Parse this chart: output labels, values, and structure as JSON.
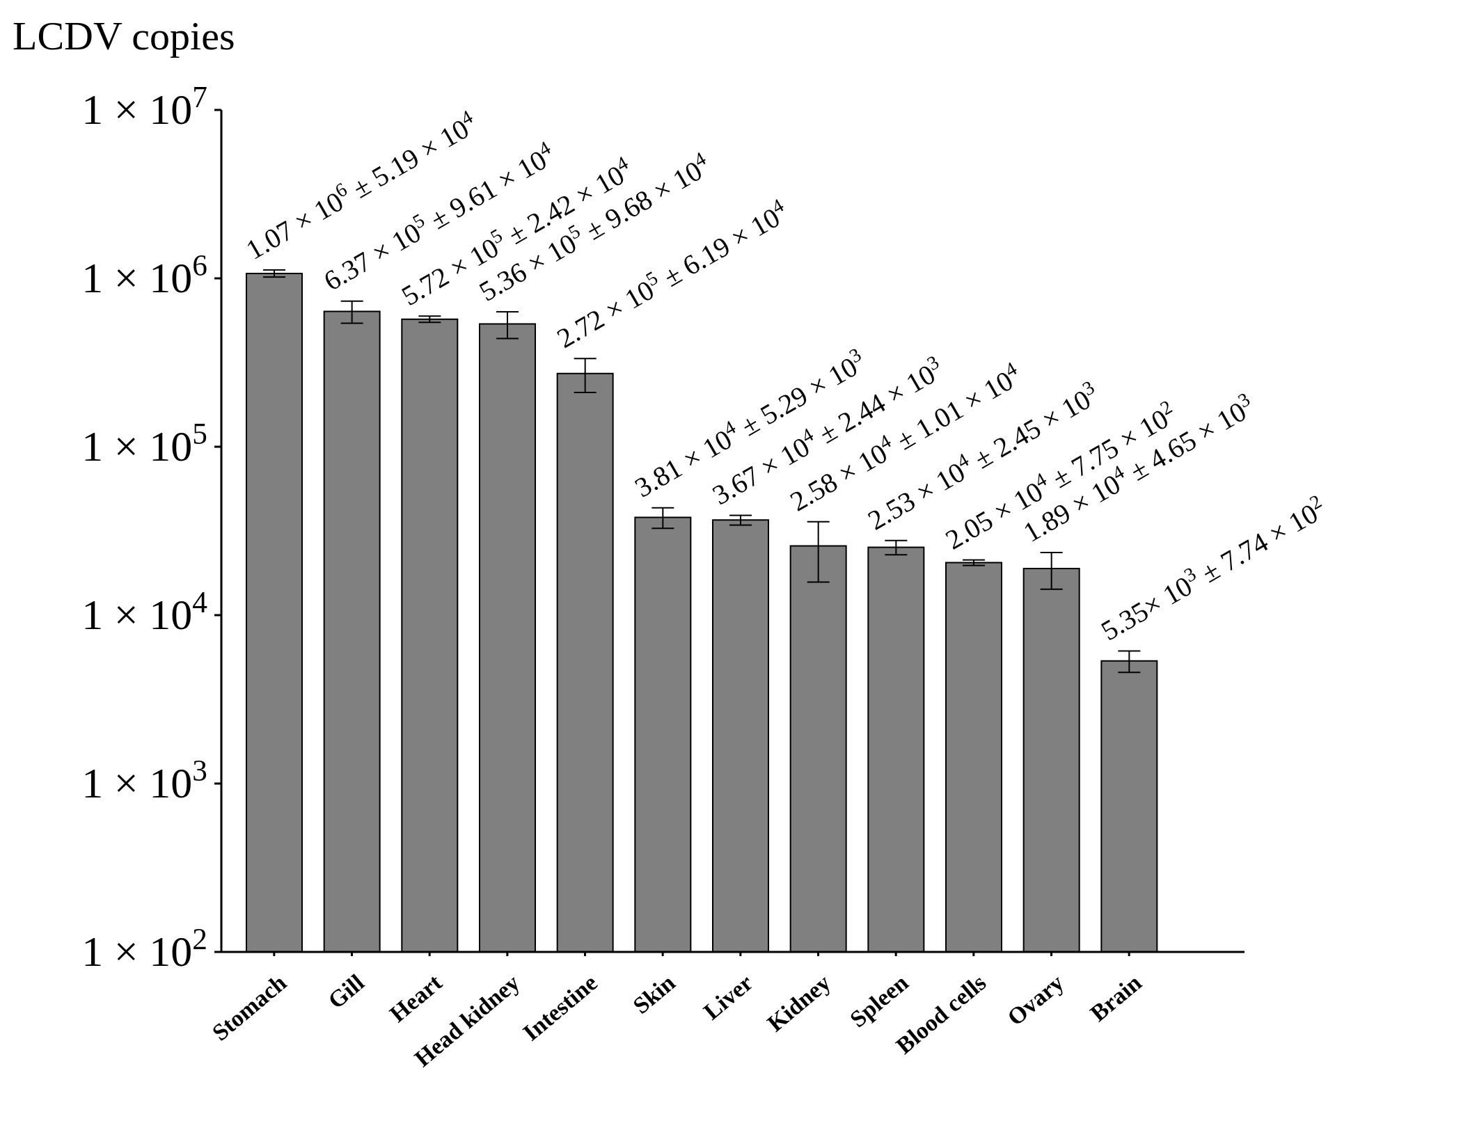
{
  "chart_data": {
    "type": "bar",
    "ylabel": "LCDV copies",
    "categories": [
      "Stomach",
      "Gill",
      "Heart",
      "Head kidney",
      "Intestine",
      "Skin",
      "Liver",
      "Kidney",
      "Spleen",
      "Blood cells",
      "Ovary",
      "Brain"
    ],
    "values": [
      1070000,
      637000,
      572000,
      536000,
      272000,
      38100,
      36700,
      25800,
      25300,
      20500,
      18900,
      5350
    ],
    "errors": [
      51900,
      96100,
      24200,
      96800,
      61900,
      5290,
      2440,
      10100,
      2450,
      775,
      4650,
      774
    ],
    "annotations": [
      {
        "text": "1.07 × 10$^{6}$ ± 5.19 × 10$^{4}$",
        "x": "Stomach",
        "y": 1121900
      },
      {
        "text": "6.37 × 10$^{5}$ ± 9.61 × 10$^{4}$",
        "x": "Gill",
        "y": 733100
      },
      {
        "text": "5.72 × 10$^{5}$ ± 2.42 × 10$^{4}$",
        "x": "Heart",
        "y": 596200
      },
      {
        "text": "5.36 × 10$^{5}$ ± 9.68 × 10$^{4}$",
        "x": "Head kidney",
        "y": 632800
      },
      {
        "text": "2.72 × 10$^{5}$ ± 6.19 × 10$^{4}$",
        "x": "Intestine",
        "y": 333900
      },
      {
        "text": "3.81 × 10$^{4}$ ± 5.29 × 10$^{3}$",
        "x": "Skin",
        "y": 43390
      },
      {
        "text": "3.67 × 10$^{4}$ ± 2.44 × 10$^{3}$",
        "x": "Liver",
        "y": 39140
      },
      {
        "text": "2.58 × 10$^{4}$ ± 1.01 × 10$^{4}$",
        "x": "Kidney",
        "y": 35900
      },
      {
        "text": "2.53 × 10$^{4}$ ± 2.45 × 10$^{3}$",
        "x": "Spleen",
        "y": 27750
      },
      {
        "text": "2.05 × 10$^{4}$ ± 7.75 × 10$^{2}$",
        "x": "Blood cells",
        "y": 21275
      },
      {
        "text": "1.89 × 10$^{4}$ ± 4.65 × 10$^{3}$",
        "x": "Ovary",
        "y": 23550
      },
      {
        "text": "5.35× 10$^{3}$ ± 7.74 × 10$^{2}$",
        "x": "Brain",
        "y": 6124
      }
    ],
    "color": "#808080",
    "log": true,
    "ylim": [
      100,
      10000000
    ],
    "yticks": [
      {
        "value": 100,
        "label": "1 × 10$^{2}$"
      },
      {
        "value": 1000,
        "label": "1 × 10$^{3}$"
      },
      {
        "value": 10000,
        "label": "1 × 10$^{4}$"
      },
      {
        "value": 100000,
        "label": "1 × 10$^{5}$"
      },
      {
        "value": 1000000,
        "label": "1 × 10$^{6}$"
      },
      {
        "value": 10000000,
        "label": "1 × 10$^{7}$"
      }
    ],
    "grid": false,
    "legend": false
  }
}
